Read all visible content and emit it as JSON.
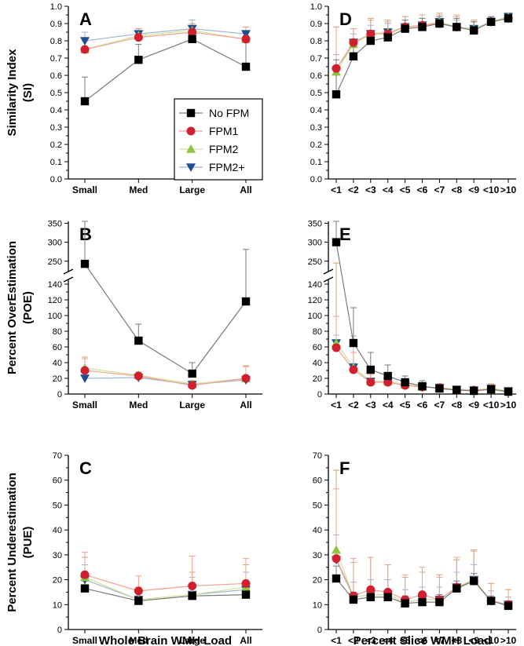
{
  "chart_data": [
    {
      "type": "line",
      "panel": "A",
      "categories": [
        "Small",
        "Med",
        "Large",
        "All"
      ],
      "ylabel": "Similarity Index (SI)",
      "ylim": [
        0,
        1
      ],
      "yticks": [
        "0.0",
        "0.1",
        "0.2",
        "0.3",
        "0.4",
        "0.5",
        "0.6",
        "0.7",
        "0.8",
        "0.9",
        "1.0"
      ],
      "series": [
        {
          "name": "No FPM",
          "values": [
            0.45,
            0.69,
            0.81,
            0.65
          ],
          "err": [
            0.14,
            0.09,
            0.04,
            0.18
          ]
        },
        {
          "name": "FPM1",
          "values": [
            0.75,
            0.82,
            0.85,
            0.81
          ],
          "err": [
            0.06,
            0.04,
            0.04,
            0.07
          ]
        },
        {
          "name": "FPM2",
          "values": [
            0.75,
            0.83,
            0.86,
            0.81
          ],
          "err": [
            0.05,
            0.04,
            0.04,
            0.07
          ]
        },
        {
          "name": "FPM2+",
          "values": [
            0.8,
            0.84,
            0.87,
            0.84
          ],
          "err": [
            0.05,
            0.03,
            0.05,
            0.04
          ]
        }
      ]
    },
    {
      "type": "line",
      "panel": "B",
      "axis_break": true,
      "categories": [
        "Small",
        "Med",
        "Large",
        "All"
      ],
      "ylabel": "Percent OverEstimation (POE)",
      "yticks_lower": [
        "0",
        "20",
        "40",
        "60",
        "80",
        "100",
        "120",
        "140"
      ],
      "yticks_upper": [
        "250",
        "300",
        "350"
      ],
      "series": [
        {
          "name": "No FPM",
          "values": [
            243,
            68,
            26,
            118
          ],
          "err": [
            120,
            21,
            14,
            163
          ]
        },
        {
          "name": "FPM1",
          "values": [
            30,
            23,
            11,
            20
          ],
          "err": [
            15,
            5,
            5,
            15
          ]
        },
        {
          "name": "FPM2",
          "values": [
            33,
            24,
            13,
            20
          ],
          "err": [
            14,
            4,
            4,
            16
          ]
        },
        {
          "name": "FPM2+",
          "values": [
            20,
            21,
            12,
            18
          ],
          "err": [
            3,
            3,
            3,
            6
          ]
        }
      ]
    },
    {
      "type": "line",
      "panel": "C",
      "categories": [
        "Small",
        "Med",
        "Large",
        "All"
      ],
      "xlabel": "Whole Brain WMH Load",
      "ylabel": "Percent Underestimation (PUE)",
      "ylim": [
        0,
        70
      ],
      "yticks": [
        "0",
        "10",
        "20",
        "30",
        "40",
        "50",
        "60",
        "70"
      ],
      "series": [
        {
          "name": "No FPM",
          "values": [
            16.5,
            11.5,
            13.5,
            14
          ],
          "err": [
            3,
            2,
            3,
            4
          ]
        },
        {
          "name": "FPM1",
          "values": [
            22,
            15.5,
            17.5,
            18.5
          ],
          "err": [
            9,
            6,
            12,
            10
          ]
        },
        {
          "name": "FPM2",
          "values": [
            21,
            12,
            14,
            17
          ],
          "err": [
            8,
            5,
            9,
            9
          ]
        },
        {
          "name": "FPM2+",
          "values": [
            20,
            12,
            14,
            16
          ],
          "err": [
            6,
            4,
            7,
            7
          ]
        }
      ]
    },
    {
      "type": "line",
      "panel": "D",
      "categories": [
        "<1",
        "<2",
        "<3",
        "<4",
        "<5",
        "<6",
        "<7",
        "<8",
        "<9",
        "<10",
        ">10"
      ],
      "ylim": [
        0,
        1
      ],
      "yticks": [
        "0.0",
        "0.1",
        "0.2",
        "0.3",
        "0.4",
        "0.5",
        "0.6",
        "0.7",
        "0.8",
        "0.9",
        "1.0"
      ],
      "series": [
        {
          "name": "No FPM",
          "values": [
            0.49,
            0.71,
            0.8,
            0.82,
            0.87,
            0.88,
            0.9,
            0.88,
            0.86,
            0.91,
            0.93
          ],
          "err": [
            0.2,
            0.08,
            0.06,
            0.05,
            0.05,
            0.05,
            0.04,
            0.05,
            0.05,
            0.03,
            0.02
          ]
        },
        {
          "name": "FPM1",
          "values": [
            0.64,
            0.79,
            0.84,
            0.84,
            0.88,
            0.89,
            0.9,
            0.88,
            0.86,
            0.91,
            0.93
          ],
          "err": [
            0.24,
            0.08,
            0.08,
            0.07,
            0.06,
            0.06,
            0.05,
            0.07,
            0.05,
            0.03,
            0.02
          ]
        },
        {
          "name": "FPM2",
          "values": [
            0.62,
            0.78,
            0.84,
            0.85,
            0.88,
            0.89,
            0.91,
            0.88,
            0.87,
            0.91,
            0.94
          ],
          "err": [
            0.26,
            0.09,
            0.09,
            0.07,
            0.06,
            0.06,
            0.05,
            0.06,
            0.05,
            0.03,
            0.02
          ]
        },
        {
          "name": "FPM2+",
          "values": [
            0.62,
            0.79,
            0.84,
            0.85,
            0.88,
            0.89,
            0.91,
            0.88,
            0.87,
            0.91,
            0.94
          ],
          "err": [
            0.1,
            0.05,
            0.05,
            0.05,
            0.04,
            0.04,
            0.04,
            0.04,
            0.04,
            0.02,
            0.02
          ]
        }
      ]
    },
    {
      "type": "line",
      "panel": "E",
      "axis_break": true,
      "categories": [
        "<1",
        "<2",
        "<3",
        "<4",
        "<5",
        "<6",
        "<7",
        "<8",
        "<9",
        "<10",
        ">10"
      ],
      "yticks_lower": [
        "0",
        "20",
        "40",
        "60",
        "80",
        "100",
        "120",
        "140"
      ],
      "yticks_upper": [
        "250",
        "300",
        "350"
      ],
      "series": [
        {
          "name": "No FPM",
          "values": [
            300,
            65,
            31,
            23,
            15,
            10,
            7,
            5,
            4,
            6,
            3
          ],
          "err": [
            80,
            45,
            22,
            14,
            8,
            7,
            6,
            4,
            4,
            4,
            3
          ]
        },
        {
          "name": "FPM1",
          "values": [
            59,
            31,
            15,
            15,
            11,
            9,
            8,
            5,
            5,
            6,
            3
          ],
          "err": [
            40,
            22,
            10,
            8,
            6,
            5,
            4,
            3,
            3,
            6,
            3
          ]
        },
        {
          "name": "FPM2",
          "values": [
            65,
            34,
            16,
            16,
            12,
            9,
            8,
            6,
            5,
            7,
            4
          ],
          "err": [
            180,
            40,
            14,
            10,
            6,
            5,
            4,
            3,
            3,
            6,
            3
          ]
        },
        {
          "name": "FPM2+",
          "values": [
            65,
            34,
            16,
            16,
            12,
            9,
            8,
            6,
            5,
            7,
            4
          ],
          "err": [
            10,
            5,
            4,
            4,
            3,
            3,
            3,
            2,
            2,
            3,
            2
          ]
        }
      ]
    },
    {
      "type": "line",
      "panel": "F",
      "categories": [
        "<1",
        "<2",
        "<3",
        "<4",
        "<5",
        "<6",
        "<7",
        "<8",
        "<9",
        "<10",
        ">10"
      ],
      "xlabel": "Percent Slice WMH Load",
      "ylim": [
        0,
        70
      ],
      "yticks": [
        "0",
        "10",
        "20",
        "30",
        "40",
        "50",
        "60",
        "70"
      ],
      "series": [
        {
          "name": "No FPM",
          "values": [
            20.5,
            12,
            13,
            13,
            10.5,
            11,
            11,
            16.5,
            19.5,
            11.5,
            9.5
          ],
          "err": [
            5,
            3,
            3,
            3,
            3,
            3,
            3,
            3,
            3,
            2,
            2
          ]
        },
        {
          "name": "FPM1",
          "values": [
            28.5,
            13.5,
            16,
            15,
            12,
            14,
            12,
            17,
            19.5,
            11.5,
            10
          ],
          "err": [
            28,
            15,
            13,
            11,
            10,
            11,
            9,
            12,
            12,
            7,
            6
          ]
        },
        {
          "name": "FPM2",
          "values": [
            32,
            13,
            14,
            14,
            11,
            12,
            12,
            17,
            20,
            11.5,
            10
          ],
          "err": [
            32,
            14,
            15,
            12,
            10,
            11,
            10,
            11,
            12,
            7,
            6
          ]
        },
        {
          "name": "FPM2+",
          "values": [
            28,
            13,
            14,
            14,
            11,
            12,
            12,
            17,
            20,
            11.5,
            10
          ],
          "err": [
            10,
            6,
            6,
            6,
            5,
            5,
            5,
            6,
            6,
            4,
            3
          ]
        }
      ]
    }
  ],
  "legend": [
    "No FPM",
    "FPM1",
    "FPM2",
    "FPM2+"
  ],
  "styles": [
    {
      "name": "No FPM",
      "marker": "square",
      "fill": "#000000",
      "line": "#7a7a7a",
      "err": "#7a7a7a"
    },
    {
      "name": "FPM1",
      "marker": "circle",
      "fill": "#d0202e",
      "line": "#f4a08c",
      "err": "#f4a08c"
    },
    {
      "name": "FPM2",
      "marker": "triangle-up",
      "fill": "#8cc63f",
      "line": "#cfe59a",
      "err": "#c9a873"
    },
    {
      "name": "FPM2+",
      "marker": "triangle-down",
      "fill": "#1f4e96",
      "line": "#9fb3d6",
      "err": "#9fb3d6"
    }
  ]
}
